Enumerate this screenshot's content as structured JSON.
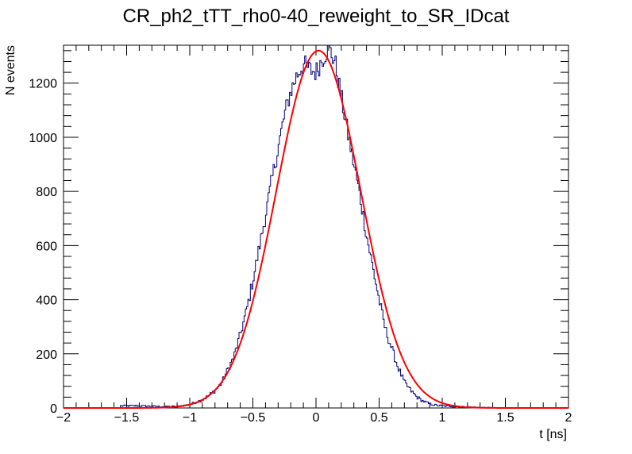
{
  "chart_data": {
    "type": "line",
    "title": "CR_ph2_tTT_rho0-40_reweight_to_SR_IDcat",
    "xlabel": "t [ns]",
    "ylabel": "N events",
    "xlim": [
      -2,
      2
    ],
    "ylim": [
      0,
      1340
    ],
    "x_ticks": [
      -2,
      -1.5,
      -1,
      -0.5,
      0,
      0.5,
      1,
      1.5,
      2
    ],
    "x_tick_labels": [
      "−2",
      "−1.5",
      "−1",
      "−0.5",
      "0",
      "0.5",
      "1",
      "1.5",
      "2"
    ],
    "y_ticks": [
      0,
      200,
      400,
      600,
      800,
      1000,
      1200
    ],
    "y_tick_labels": [
      "0",
      "200",
      "400",
      "600",
      "800",
      "1000",
      "1200"
    ],
    "series": [
      {
        "name": "histogram",
        "style": "step",
        "color": "#000080",
        "x": [
          -1.4,
          -1.2,
          -1.1,
          -1.0,
          -0.95,
          -0.9,
          -0.85,
          -0.8,
          -0.75,
          -0.7,
          -0.65,
          -0.6,
          -0.55,
          -0.5,
          -0.45,
          -0.4,
          -0.35,
          -0.3,
          -0.25,
          -0.2,
          -0.15,
          -0.1,
          -0.05,
          0.0,
          0.05,
          0.1,
          0.15,
          0.2,
          0.25,
          0.3,
          0.35,
          0.4,
          0.45,
          0.5,
          0.55,
          0.6,
          0.65,
          0.7,
          0.75,
          0.8,
          0.85,
          0.9,
          0.95,
          1.0,
          1.1,
          1.2,
          1.3,
          1.4
        ],
        "y": [
          8,
          5,
          6,
          12,
          22,
          30,
          45,
          65,
          90,
          140,
          190,
          270,
          360,
          470,
          590,
          710,
          840,
          960,
          1080,
          1170,
          1230,
          1270,
          1250,
          1240,
          1290,
          1330,
          1280,
          1150,
          1020,
          900,
          780,
          640,
          520,
          400,
          290,
          220,
          150,
          95,
          65,
          40,
          25,
          15,
          10,
          8,
          5,
          4,
          2,
          1
        ]
      },
      {
        "name": "gaussian-fit",
        "style": "line",
        "color": "#ff0000",
        "amplitude": 1320,
        "mean": 0.02,
        "sigma": 0.335
      }
    ]
  }
}
